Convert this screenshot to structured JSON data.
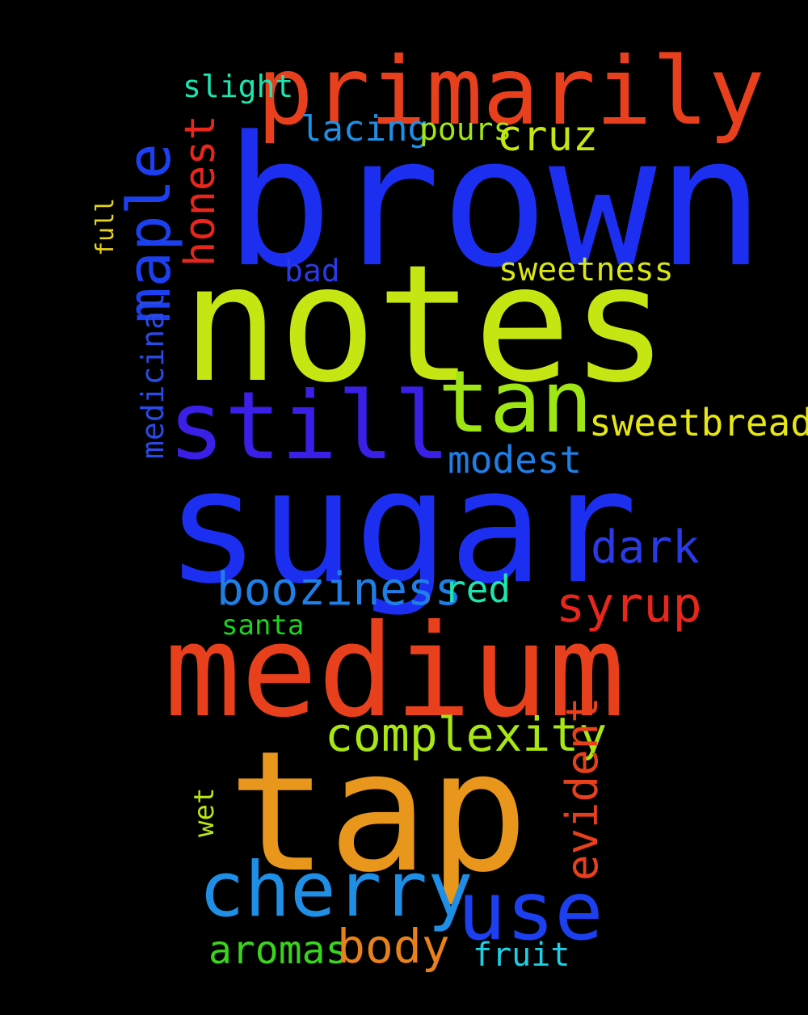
{
  "background": "#000000",
  "words": [
    {
      "text": "brown",
      "color": "#1c2ff0"
    },
    {
      "text": "notes",
      "color": "#c6e614"
    },
    {
      "text": "sugar",
      "color": "#1c2ff0"
    },
    {
      "text": "medium",
      "color": "#e8401c"
    },
    {
      "text": "tap",
      "color": "#e8961c"
    },
    {
      "text": "primarily",
      "color": "#e8401c"
    },
    {
      "text": "still",
      "color": "#3a1fe6"
    },
    {
      "text": "tan",
      "color": "#9ee614"
    },
    {
      "text": "cherry",
      "color": "#1f8fe6"
    },
    {
      "text": "maple",
      "color": "#1c3ff0"
    },
    {
      "text": "use",
      "color": "#1c3ff0"
    },
    {
      "text": "complexity",
      "color": "#a8e614"
    },
    {
      "text": "lacing",
      "color": "#1f8fe6"
    },
    {
      "text": "pours",
      "color": "#9ee614"
    },
    {
      "text": "cruz",
      "color": "#c6e614"
    },
    {
      "text": "slight",
      "color": "#1ce6b0"
    },
    {
      "text": "bad",
      "color": "#2a3ae6"
    },
    {
      "text": "sweetness",
      "color": "#d8e614"
    },
    {
      "text": "honest",
      "color": "#e8261c"
    },
    {
      "text": "sweetbread",
      "color": "#e6e614"
    },
    {
      "text": "modest",
      "color": "#1f7fe6"
    },
    {
      "text": "dark",
      "color": "#2a3ae6"
    },
    {
      "text": "booziness",
      "color": "#1f7fe6"
    },
    {
      "text": "red",
      "color": "#1ce6b0"
    },
    {
      "text": "syrup",
      "color": "#e8261c"
    },
    {
      "text": "santa",
      "color": "#1cd41c"
    },
    {
      "text": "full",
      "color": "#e6d21c"
    },
    {
      "text": "medicinal",
      "color": "#2a4ae6"
    },
    {
      "text": "aromas",
      "color": "#3ad41c"
    },
    {
      "text": "body",
      "color": "#e8801c"
    },
    {
      "text": "fruit",
      "color": "#1cd0e6"
    },
    {
      "text": "wet",
      "color": "#b8e614"
    },
    {
      "text": "evident",
      "color": "#e8401c"
    }
  ]
}
